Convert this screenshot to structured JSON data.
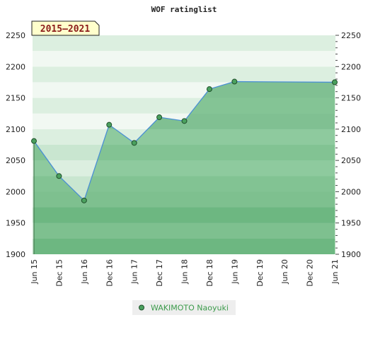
{
  "chart_data": {
    "type": "area",
    "title": "WOF ratinglist",
    "period_label": "2015–2021",
    "xlabel": "",
    "ylabel": "",
    "ylim": [
      1900,
      2250
    ],
    "y_ticks": [
      1900,
      1950,
      2000,
      2050,
      2100,
      2150,
      2200,
      2250
    ],
    "x_ticks": [
      "Jun 15",
      "Dec 15",
      "Jun 16",
      "Dec 16",
      "Jun 17",
      "Dec 17",
      "Jun 18",
      "Dec 18",
      "Jun 19",
      "Dec 19",
      "Jun 20",
      "Dec 20",
      "Jun 21"
    ],
    "grid": true,
    "legend_position": "bottom",
    "series": [
      {
        "name": "WAKIMOTO Naoyuki",
        "color": "#4a8fd4",
        "fill_color": "#5cb574",
        "marker_color": "#4aa05e",
        "points": [
          {
            "x": "Jun 15",
            "y": 2081
          },
          {
            "x": "Dec 15",
            "y": 2025
          },
          {
            "x": "Jun 16",
            "y": 1986
          },
          {
            "x": "Dec 16",
            "y": 2107
          },
          {
            "x": "Jun 17",
            "y": 2078
          },
          {
            "x": "Dec 17",
            "y": 2119
          },
          {
            "x": "Jun 18",
            "y": 2113
          },
          {
            "x": "Dec 18",
            "y": 2164
          },
          {
            "x": "Jun 19",
            "y": 2176
          },
          {
            "x": "Jun 21",
            "y": 2175
          }
        ]
      }
    ]
  }
}
